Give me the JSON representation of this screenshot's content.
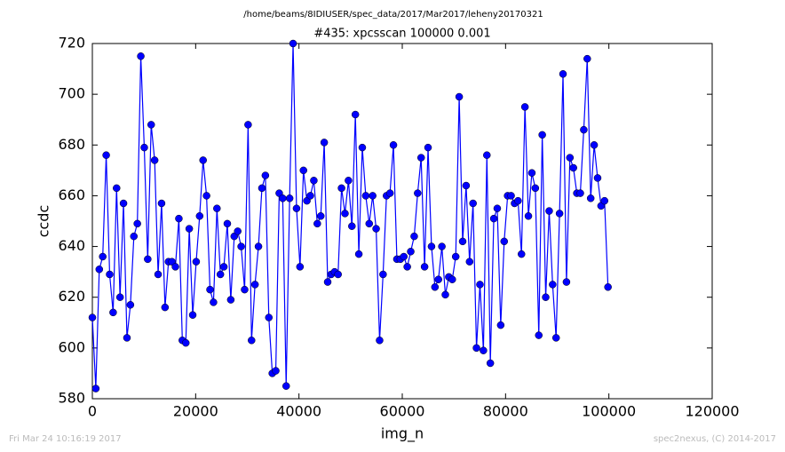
{
  "chart_data": {
    "type": "line",
    "suptitle": "/home/beams/8IDIUSER/spec_data/2017/Mar2017/leheny20170321",
    "title": "#435: xpcsscan 100000 0.001",
    "xlabel": "img_n",
    "ylabel": "ccdc",
    "footer_left": "Fri Mar 24 10:16:19 2017",
    "footer_right": "spec2nexus, (C) 2014-2017",
    "xlim": [
      0,
      120000
    ],
    "ylim": [
      580,
      720
    ],
    "xticks": [
      0,
      20000,
      40000,
      60000,
      80000,
      100000,
      120000
    ],
    "yticks": [
      580,
      600,
      620,
      640,
      660,
      680,
      700,
      720
    ],
    "marker": true,
    "x": [
      0,
      670,
      1340,
      2010,
      2680,
      3350,
      4020,
      4690,
      5360,
      6030,
      6700,
      7370,
      8040,
      8710,
      9380,
      10050,
      10720,
      11390,
      12060,
      12730,
      13400,
      14070,
      14740,
      15410,
      16080,
      16750,
      17420,
      18090,
      18760,
      19430,
      20100,
      20770,
      21440,
      22110,
      22780,
      23450,
      24120,
      24790,
      25460,
      26130,
      26800,
      27470,
      28140,
      28810,
      29480,
      30150,
      30820,
      31490,
      32160,
      32830,
      33500,
      34170,
      34840,
      35510,
      36180,
      36850,
      37520,
      38190,
      38860,
      39530,
      40200,
      40870,
      41540,
      42210,
      42880,
      43550,
      44220,
      44890,
      45560,
      46230,
      46900,
      47570,
      48240,
      48910,
      49580,
      50250,
      50920,
      51590,
      52260,
      52930,
      53600,
      54270,
      54940,
      55610,
      56280,
      56950,
      57620,
      58290,
      58960,
      59630,
      60300,
      60970,
      61640,
      62310,
      62980,
      63650,
      64320,
      64990,
      65660,
      66330,
      67000,
      67670,
      68340,
      69010,
      69680,
      70350,
      71020,
      71690,
      72360,
      73030,
      73700,
      74370,
      75040,
      75710,
      76380,
      77050,
      77720,
      78390,
      79060,
      79730,
      80400,
      81070,
      81740,
      82410,
      83080,
      83750,
      84420,
      85090,
      85760,
      86430,
      87100,
      87770,
      88440,
      89110,
      89780,
      90450,
      91120,
      91790,
      92460,
      93130,
      93800,
      94470,
      95140,
      95810,
      96480,
      97150,
      97820,
      98490,
      99160,
      99830
    ],
    "series": [
      {
        "name": "ccdc",
        "color": "#0000ff",
        "values": [
          612,
          584,
          631,
          636,
          676,
          629,
          614,
          663,
          620,
          657,
          604,
          617,
          644,
          649,
          715,
          679,
          635,
          688,
          674,
          629,
          657,
          616,
          634,
          634,
          632,
          651,
          603,
          602,
          647,
          613,
          634,
          652,
          674,
          660,
          623,
          618,
          655,
          629,
          632,
          649,
          619,
          644,
          646,
          640,
          623,
          688,
          603,
          625,
          640,
          663,
          668,
          612,
          590,
          591,
          661,
          659,
          585,
          659,
          720,
          655,
          632,
          670,
          658,
          660,
          666,
          649,
          652,
          681,
          626,
          629,
          630,
          629,
          663,
          653,
          666,
          648,
          692,
          637,
          679,
          660,
          649,
          660,
          647,
          603,
          629,
          660,
          661,
          680,
          635,
          635,
          636,
          632,
          638,
          644,
          661,
          675,
          632,
          679,
          640,
          624,
          627,
          640,
          621,
          628,
          627,
          636,
          699,
          642,
          664,
          634,
          657,
          600,
          625,
          599,
          676,
          594,
          651,
          655,
          609,
          642,
          660,
          660,
          657,
          658,
          637,
          695,
          652,
          669,
          663,
          605,
          684,
          620,
          654,
          625,
          604,
          653,
          708,
          626,
          675,
          671,
          661,
          661,
          686,
          714,
          659,
          680,
          667,
          656,
          658,
          624
        ]
      }
    ]
  }
}
